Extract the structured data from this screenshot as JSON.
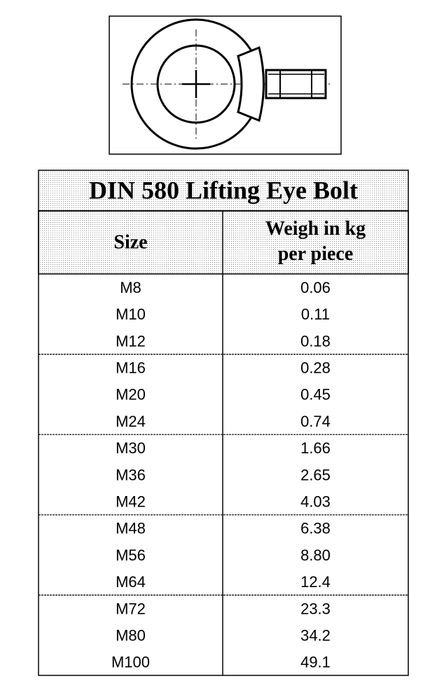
{
  "table": {
    "title": "DIN 580 Lifting Eye Bolt",
    "header": [
      "Size",
      "Weigh in kg per piece"
    ],
    "rows": [
      [
        "M8",
        "0.06"
      ],
      [
        "M10",
        "0.11"
      ],
      [
        "M12",
        "0.18"
      ],
      [
        "M16",
        "0.28"
      ],
      [
        "M20",
        "0.45"
      ],
      [
        "M24",
        "0.74"
      ],
      [
        "M30",
        "1.66"
      ],
      [
        "M36",
        "2.65"
      ],
      [
        "M42",
        "4.03"
      ],
      [
        "M48",
        "6.38"
      ],
      [
        "M56",
        "8.80"
      ],
      [
        "M64",
        "12.4"
      ],
      [
        "M72",
        "23.3"
      ],
      [
        "M80",
        "34.2"
      ],
      [
        "M100",
        "49.1"
      ]
    ]
  }
}
